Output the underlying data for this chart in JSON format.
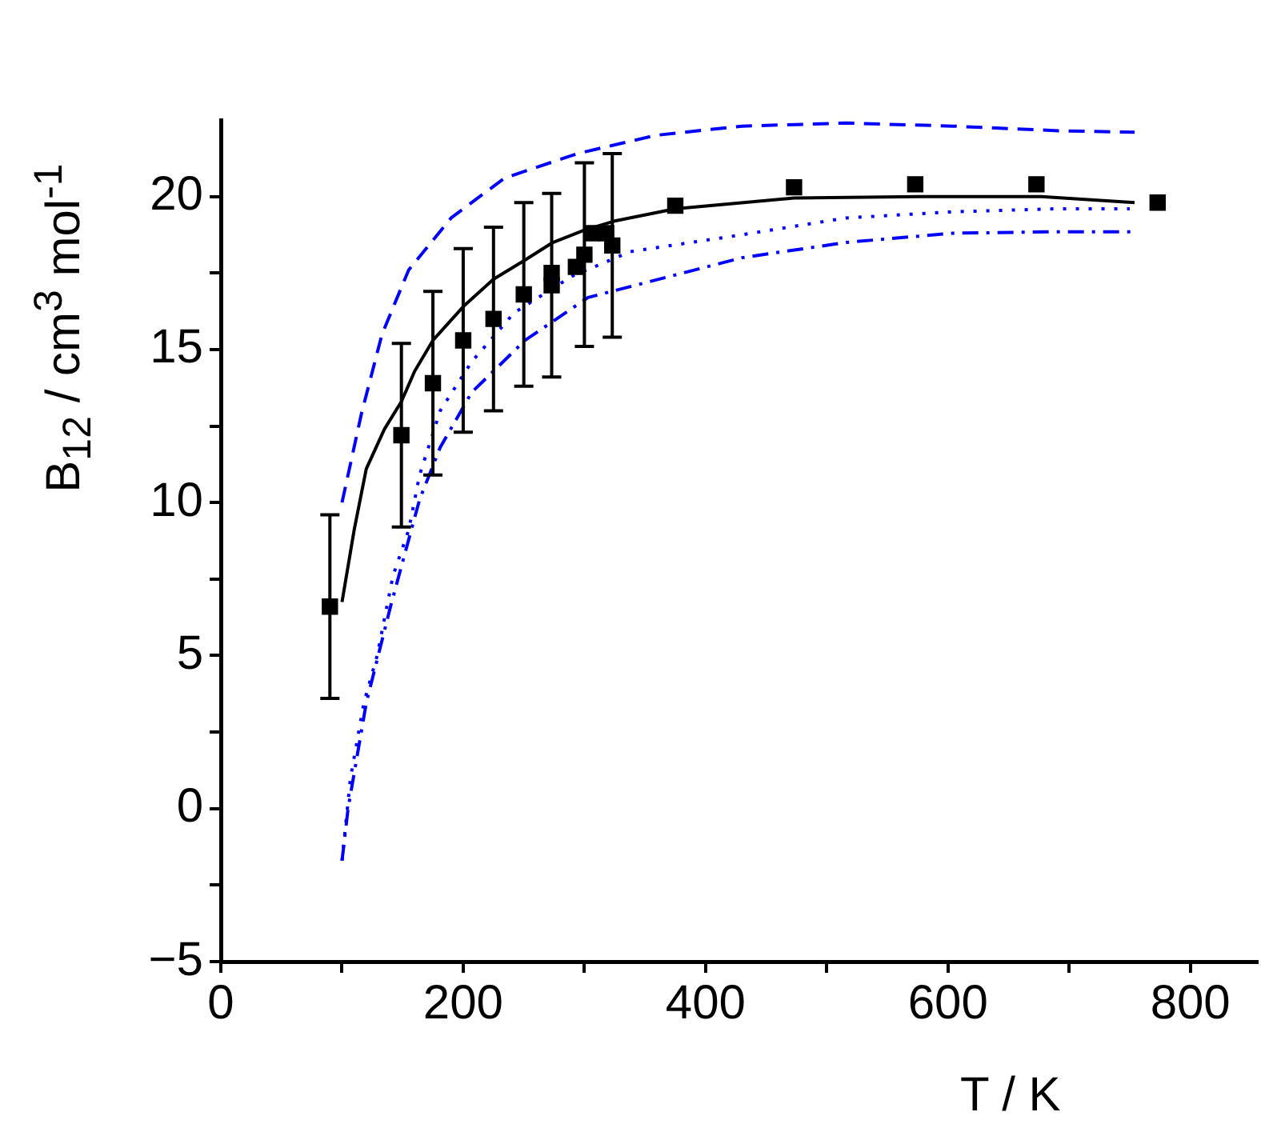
{
  "chart_data": {
    "type": "line",
    "xlabel": "T / K",
    "ylabel": "B$_{12}$ / cm$^{3}$ mol$^{-1}$",
    "xlim": [
      0,
      855
    ],
    "ylim": [
      -5,
      22.5
    ],
    "xticks": [
      0,
      {
        "value": 100,
        "label": null
      },
      200,
      {
        "value": 300,
        "label": null
      },
      400,
      {
        "value": 500,
        "label": null
      },
      600,
      {
        "value": 700,
        "label": null
      },
      800
    ],
    "yticks": [
      -5,
      {
        "value": -2.5,
        "label": null
      },
      0,
      {
        "value": 2.5,
        "label": null
      },
      5,
      {
        "value": 7.5,
        "label": null
      },
      10,
      {
        "value": 12.5,
        "label": null
      },
      15,
      {
        "value": 17.5,
        "label": null
      },
      20
    ],
    "grid": false,
    "legend": false,
    "series": [
      {
        "type": "scatter",
        "color": "#000000",
        "marker": "square",
        "x": [
          90,
          149,
          175,
          200,
          225,
          250,
          273,
          273,
          293,
          300,
          306,
          318,
          323,
          375,
          473,
          573,
          673,
          773
        ],
        "values": [
          6.6,
          12.2,
          13.9,
          15.3,
          16.0,
          16.8,
          17.1,
          17.5,
          17.7,
          18.1,
          18.8,
          18.8,
          18.4,
          19.7,
          20.3,
          20.4,
          20.4,
          19.8
        ],
        "errors": [
          3,
          3,
          3,
          3,
          3,
          3,
          3,
          null,
          null,
          3,
          null,
          null,
          3,
          null,
          null,
          null,
          null,
          null
        ]
      },
      {
        "type": "line",
        "color": "#000000",
        "line_style": "solid",
        "marker": "none",
        "x": [
          100,
          110,
          120,
          135,
          149,
          160,
          175,
          200,
          225,
          250,
          274,
          300,
          325,
          375,
          473,
          576,
          677,
          754
        ],
        "values": [
          6.75,
          9.1,
          11.1,
          12.4,
          13.3,
          14.3,
          15.3,
          16.4,
          17.3,
          17.9,
          18.5,
          18.9,
          19.2,
          19.6,
          19.95,
          20.0,
          20.0,
          19.8
        ]
      },
      {
        "type": "line",
        "color": "#0000ff",
        "line_style": "dashed",
        "marker": "none",
        "x": [
          100,
          116,
          133,
          155,
          190,
          234,
          294,
          359,
          430,
          516,
          604,
          691,
          754
        ],
        "values": [
          10.0,
          12.9,
          15.5,
          17.6,
          19.3,
          20.6,
          21.4,
          22.0,
          22.3,
          22.4,
          22.3,
          22.15,
          22.1
        ]
      },
      {
        "type": "line",
        "color": "#0000ff",
        "line_style": "dotted",
        "marker": "none",
        "x": [
          100,
          107,
          118,
          129,
          142,
          155,
          164,
          181,
          207,
          242,
          290,
          338,
          430,
          516,
          604,
          691,
          750
        ],
        "values": [
          -1.7,
          1.0,
          3.45,
          5.0,
          7.6,
          9.1,
          10.9,
          13.0,
          14.6,
          16.2,
          17.4,
          18.2,
          18.75,
          19.3,
          19.5,
          19.6,
          19.6
        ]
      },
      {
        "type": "line",
        "color": "#0000ff",
        "line_style": "dashdot",
        "marker": "none",
        "x": [
          100,
          105,
          120,
          140,
          164,
          181,
          207,
          251,
          303,
          342,
          430,
          516,
          604,
          691,
          754
        ],
        "values": [
          -1.7,
          0,
          3.45,
          6.6,
          10.1,
          11.8,
          13.6,
          15.3,
          16.7,
          17.1,
          18.0,
          18.5,
          18.8,
          18.85,
          18.85
        ]
      }
    ]
  }
}
